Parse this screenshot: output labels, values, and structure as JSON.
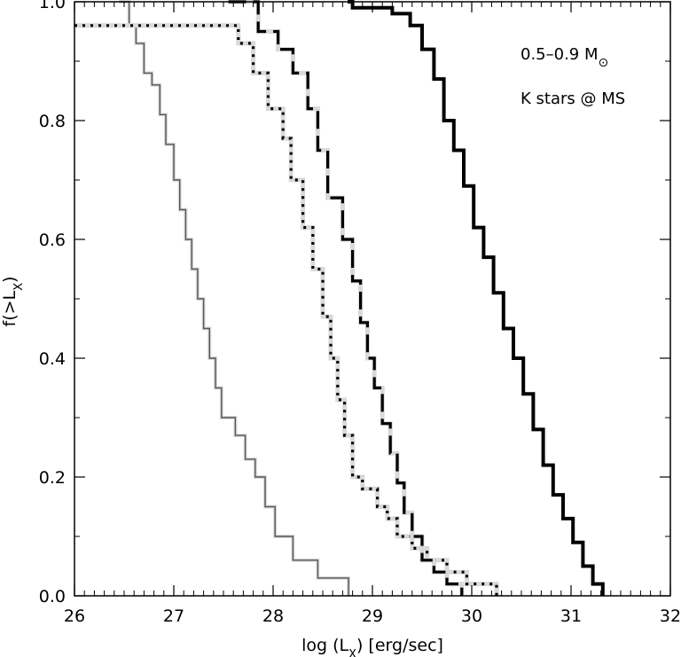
{
  "chart_data": {
    "type": "line",
    "title": "",
    "xlabel": "log (L",
    "xlabel_sub": "X",
    "xlabel_tail": ") [erg/sec]",
    "ylabel": "f(>L",
    "ylabel_sub": "X",
    "ylabel_tail": ")",
    "xlim": [
      26,
      32
    ],
    "ylim": [
      0.0,
      1.0
    ],
    "x_ticks": [
      26,
      27,
      28,
      29,
      30,
      31,
      32
    ],
    "x_tick_labels": [
      "26",
      "27",
      "28",
      "29",
      "30",
      "31",
      "32"
    ],
    "y_ticks": [
      0.0,
      0.2,
      0.4,
      0.6,
      0.8,
      1.0
    ],
    "y_tick_labels": [
      "0.0",
      "0.2",
      "0.4",
      "0.6",
      "0.8",
      "1.0"
    ],
    "grid": false,
    "annotations": [
      {
        "text": "0.5–0.9 M",
        "symbol": "⊙"
      },
      {
        "text": "K stars @ MS"
      }
    ],
    "series": [
      {
        "style": "thin-solid-gray",
        "color": "#555555",
        "x": [
          26.45,
          26.55,
          26.62,
          26.7,
          26.78,
          26.86,
          26.92,
          27.0,
          27.06,
          27.12,
          27.18,
          27.24,
          27.3,
          27.36,
          27.42,
          27.48,
          27.62,
          27.72,
          27.82,
          27.92,
          28.02,
          28.2,
          28.45,
          28.76
        ],
        "y": [
          1.0,
          0.96,
          0.93,
          0.88,
          0.86,
          0.81,
          0.76,
          0.7,
          0.65,
          0.6,
          0.55,
          0.5,
          0.45,
          0.4,
          0.35,
          0.3,
          0.27,
          0.23,
          0.2,
          0.15,
          0.1,
          0.06,
          0.03,
          0.0
        ]
      },
      {
        "style": "dotted",
        "color": "#000000",
        "x": [
          26.0,
          27.65,
          27.8,
          27.95,
          28.1,
          28.18,
          28.3,
          28.4,
          28.5,
          28.58,
          28.65,
          28.72,
          28.8,
          28.9,
          29.05,
          29.15,
          29.25,
          29.4,
          29.55,
          29.75,
          29.95,
          30.25
        ],
        "y": [
          0.96,
          0.93,
          0.88,
          0.82,
          0.77,
          0.7,
          0.62,
          0.55,
          0.47,
          0.4,
          0.33,
          0.27,
          0.2,
          0.18,
          0.15,
          0.13,
          0.1,
          0.08,
          0.06,
          0.04,
          0.02,
          0.0
        ]
      },
      {
        "style": "dashed",
        "color": "#000000",
        "x": [
          27.55,
          27.85,
          28.05,
          28.2,
          28.35,
          28.45,
          28.55,
          28.7,
          28.8,
          28.88,
          28.95,
          29.02,
          29.1,
          29.18,
          29.25,
          29.32,
          29.4,
          29.5,
          29.62,
          29.75,
          29.9
        ],
        "y": [
          1.0,
          0.95,
          0.92,
          0.88,
          0.82,
          0.75,
          0.67,
          0.6,
          0.53,
          0.46,
          0.4,
          0.35,
          0.29,
          0.24,
          0.19,
          0.14,
          0.1,
          0.06,
          0.04,
          0.02,
          0.0
        ]
      },
      {
        "style": "thick-solid",
        "color": "#000000",
        "x": [
          28.75,
          28.8,
          29.05,
          29.2,
          29.38,
          29.5,
          29.62,
          29.72,
          29.82,
          29.92,
          30.02,
          30.12,
          30.22,
          30.32,
          30.42,
          30.52,
          30.62,
          30.72,
          30.82,
          30.92,
          31.02,
          31.12,
          31.22,
          31.32
        ],
        "y": [
          1.0,
          0.99,
          0.99,
          0.98,
          0.96,
          0.92,
          0.87,
          0.8,
          0.75,
          0.69,
          0.62,
          0.57,
          0.51,
          0.45,
          0.4,
          0.34,
          0.28,
          0.22,
          0.17,
          0.13,
          0.09,
          0.05,
          0.02,
          0.0
        ]
      }
    ]
  }
}
